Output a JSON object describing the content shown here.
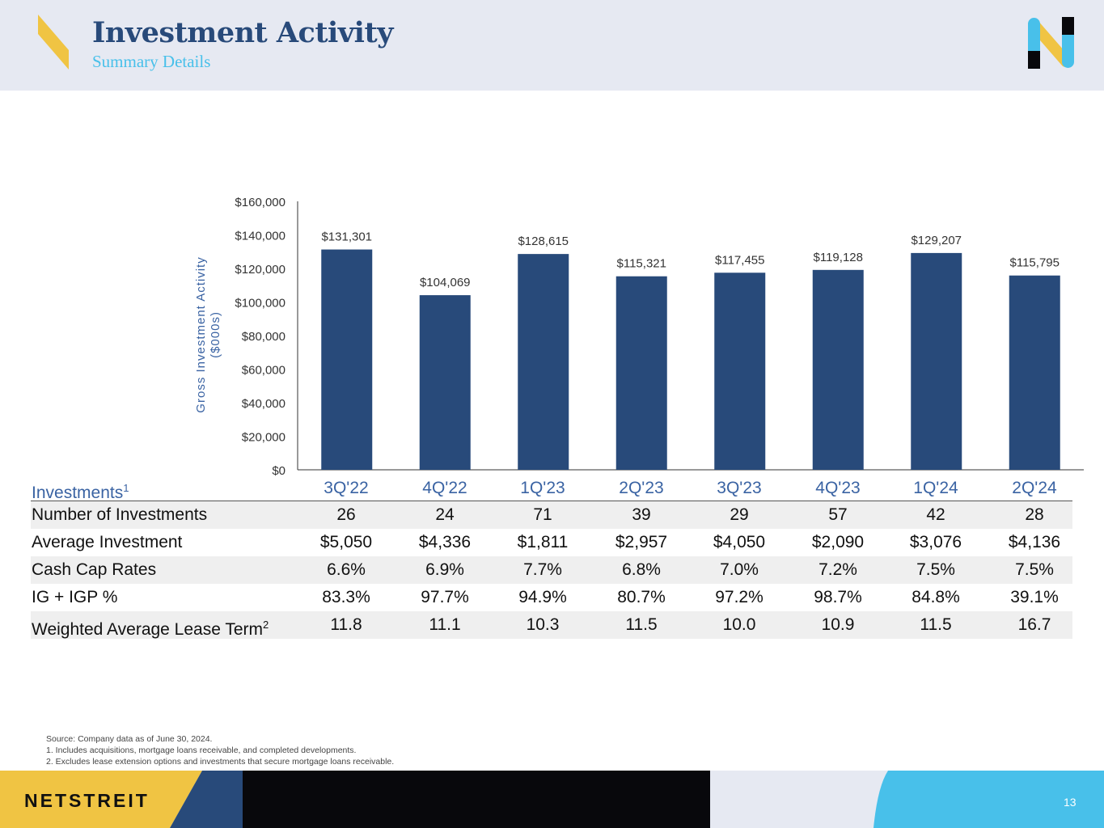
{
  "header": {
    "title": "Investment Activity",
    "subtitle": "Summary Details"
  },
  "colors": {
    "bar": "#284a7a",
    "accent_yellow": "#f0c443",
    "accent_blue": "#48c0ea",
    "header_bg": "#e6e9f2"
  },
  "chart_data": {
    "type": "bar",
    "categories": [
      "3Q'22",
      "4Q'22",
      "1Q'23",
      "2Q'23",
      "3Q'23",
      "4Q'23",
      "1Q'24",
      "2Q'24"
    ],
    "values": [
      131301,
      104069,
      128615,
      115321,
      117455,
      119128,
      129207,
      115795
    ],
    "data_labels": [
      "$131,301",
      "$104,069",
      "$128,615",
      "$115,321",
      "$117,455",
      "$119,128",
      "$129,207",
      "$115,795"
    ],
    "ylabel": "Gross Investment Activity ($000s)",
    "ylabel_lines": [
      "Gross Investment Activity",
      "($000s)"
    ],
    "ylim": [
      0,
      160000
    ],
    "yticks": [
      0,
      20000,
      40000,
      60000,
      80000,
      100000,
      120000,
      140000,
      160000
    ],
    "ytick_labels": [
      "$0",
      "$20,000",
      "$40,000",
      "$60,000",
      "$80,000",
      "$100,000",
      "$120,000",
      "$140,000",
      "$160,000"
    ],
    "grid": false
  },
  "table": {
    "header_label": "Investments",
    "header_sup": "1",
    "columns": [
      "3Q'22",
      "4Q'22",
      "1Q'23",
      "2Q'23",
      "3Q'23",
      "4Q'23",
      "1Q'24",
      "2Q'24"
    ],
    "rows": [
      {
        "label": "Number of Investments",
        "sup": "",
        "values": [
          "26",
          "24",
          "71",
          "39",
          "29",
          "57",
          "42",
          "28"
        ]
      },
      {
        "label": "Average Investment",
        "sup": "",
        "values": [
          "$5,050",
          "$4,336",
          "$1,811",
          "$2,957",
          "$4,050",
          "$2,090",
          "$3,076",
          "$4,136"
        ]
      },
      {
        "label": "Cash Cap Rates",
        "sup": "",
        "values": [
          "6.6%",
          "6.9%",
          "7.7%",
          "6.8%",
          "7.0%",
          "7.2%",
          "7.5%",
          "7.5%"
        ]
      },
      {
        "label": "IG + IGP %",
        "sup": "",
        "values": [
          "83.3%",
          "97.7%",
          "94.9%",
          "80.7%",
          "97.2%",
          "98.7%",
          "84.8%",
          "39.1%"
        ]
      },
      {
        "label": "Weighted Average Lease Term",
        "sup": "2",
        "values": [
          "11.8",
          "11.1",
          "10.3",
          "11.5",
          "10.0",
          "10.9",
          "11.5",
          "16.7"
        ]
      }
    ]
  },
  "notes": [
    "Source: Company data as of June 30, 2024.",
    "1.  Includes acquisitions, mortgage loans receivable, and completed developments.",
    "2.  Excludes lease extension options and investments that secure mortgage loans receivable."
  ],
  "footer": {
    "brand": "NETSTREIT",
    "page": "13"
  }
}
